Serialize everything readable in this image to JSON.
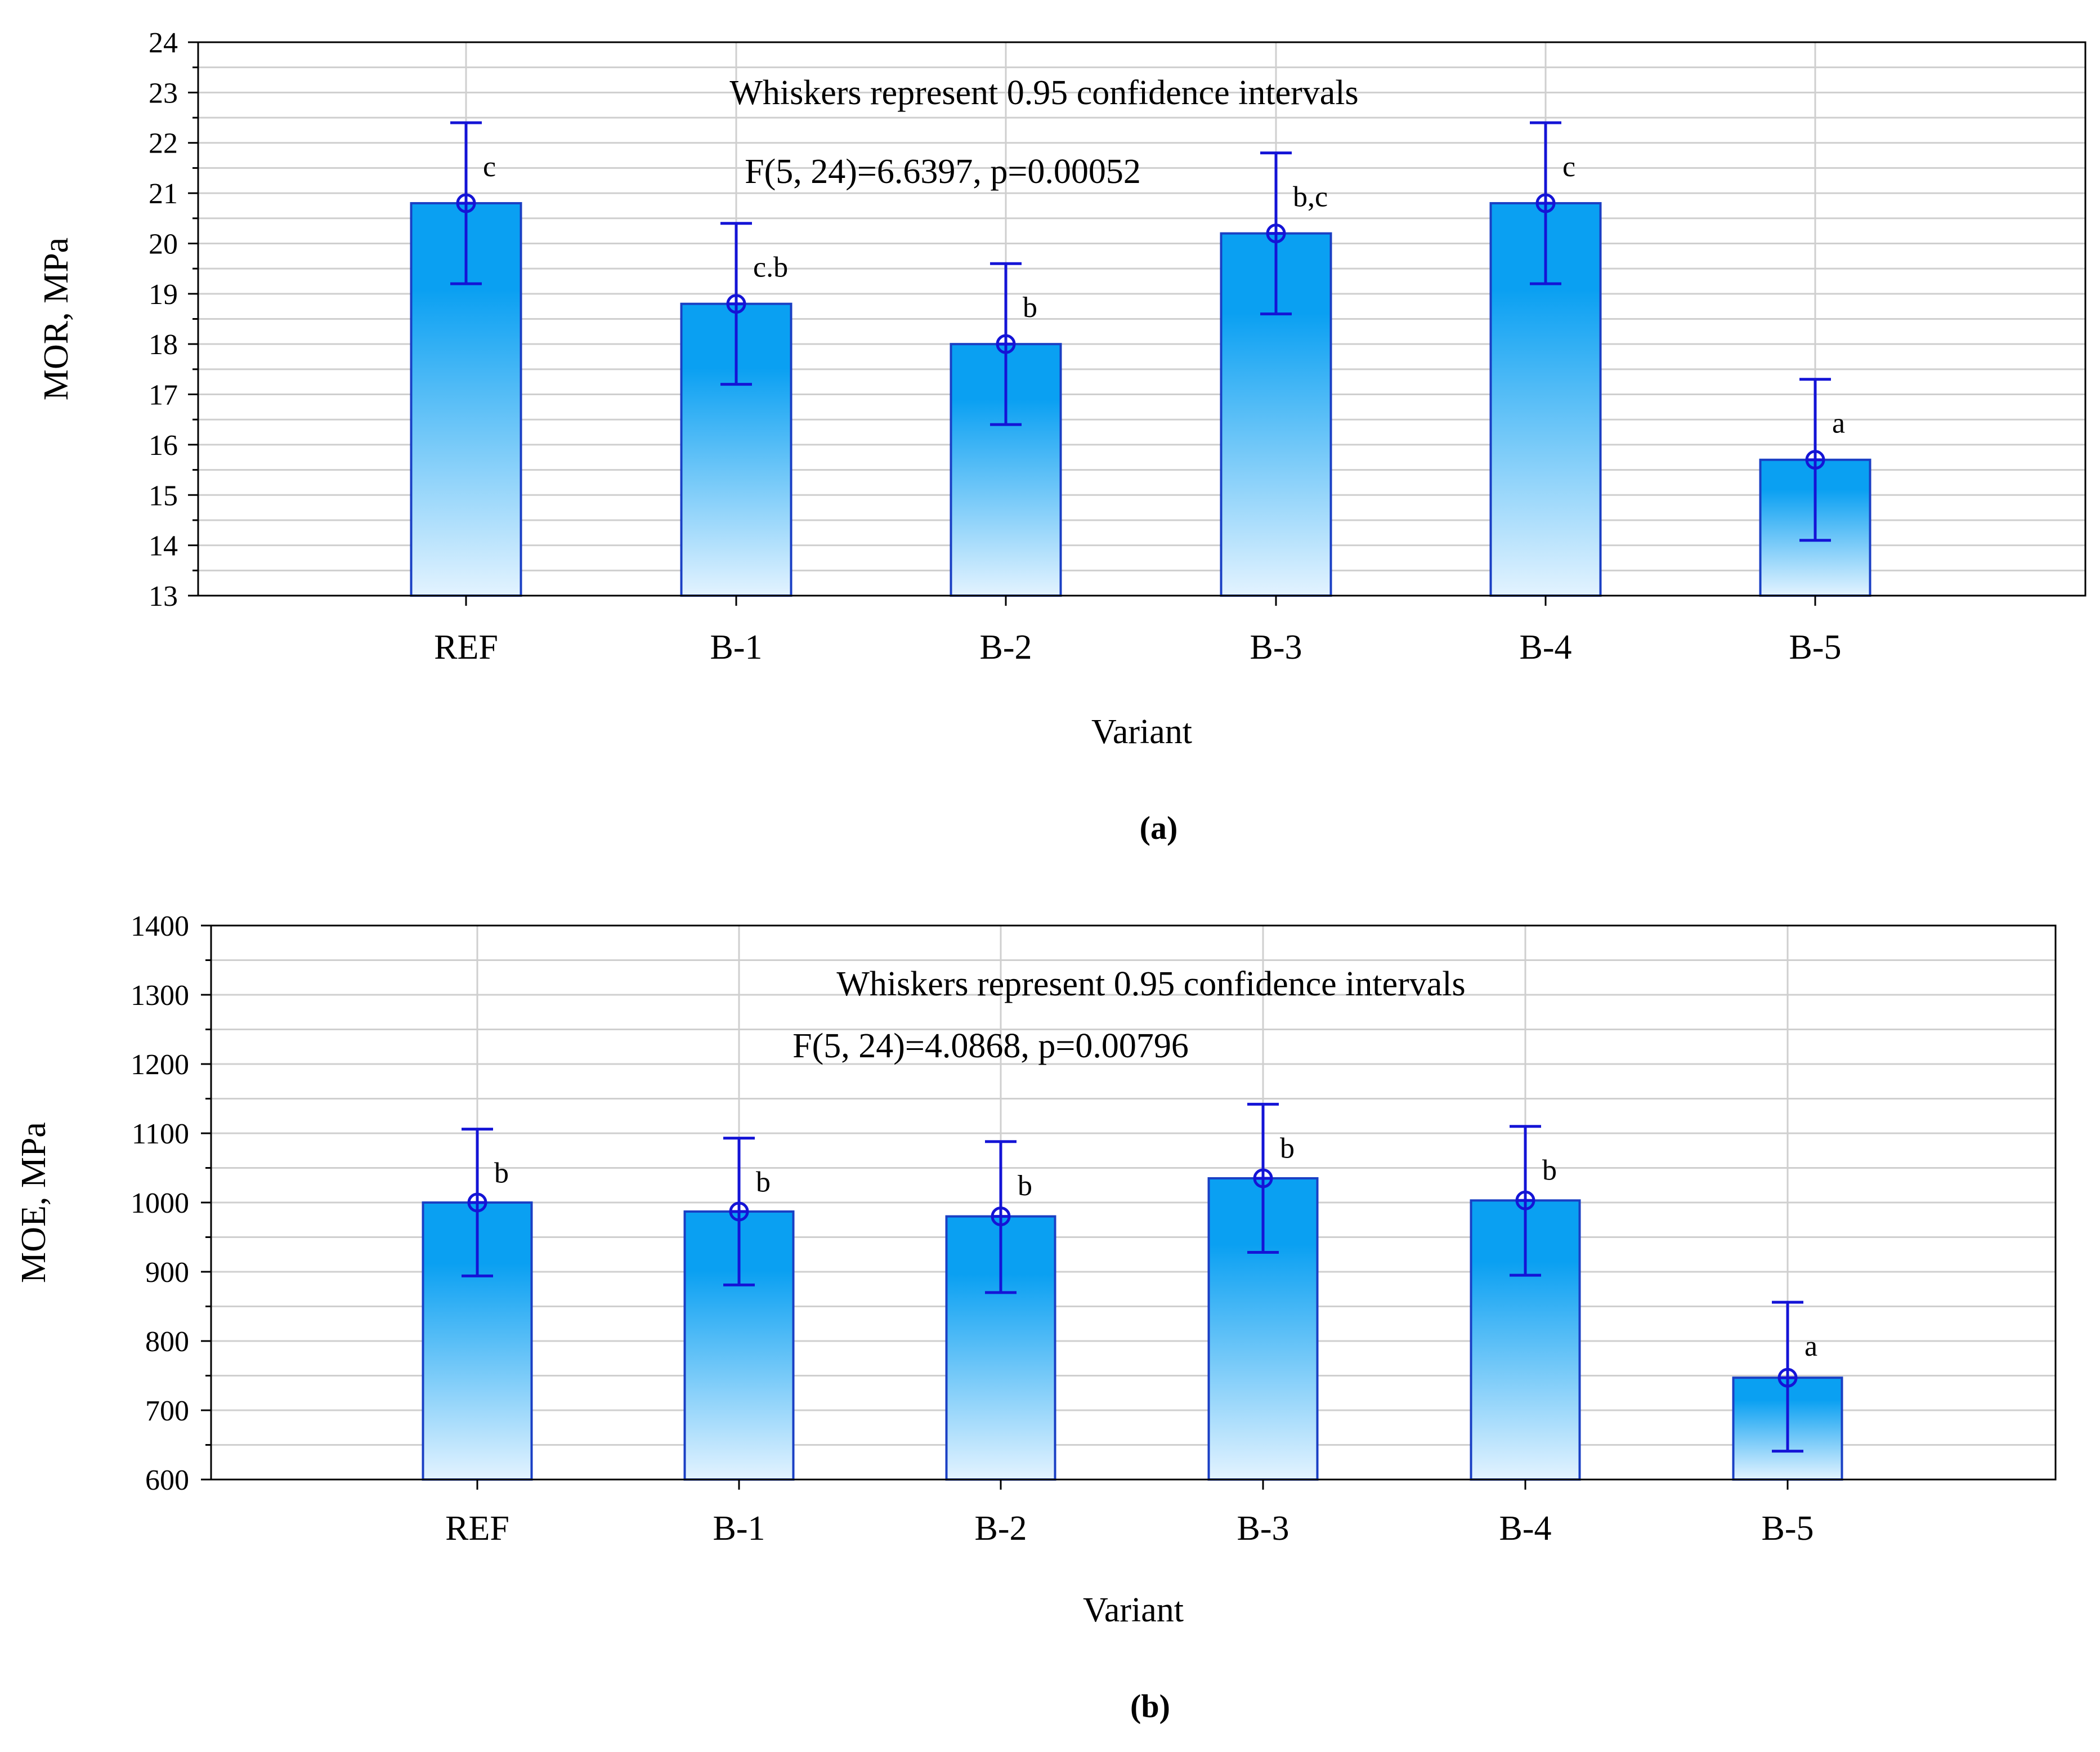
{
  "colors": {
    "bar_top": "#0aa0f2",
    "bar_bottom": "#e3f3ff",
    "bar_edge": "#1a3fc4",
    "whisker": "#1414d6",
    "grid": "#cfcfcf"
  },
  "chart_data": [
    {
      "type": "bar",
      "id": "a",
      "caption": "(a)",
      "categories": [
        "REF",
        "B-1",
        "B-2",
        "B-3",
        "B-4",
        "B-5"
      ],
      "values": [
        20.8,
        18.8,
        18.0,
        20.2,
        20.8,
        15.7
      ],
      "ci_low": [
        19.2,
        17.2,
        16.4,
        18.6,
        19.2,
        14.1
      ],
      "ci_high": [
        22.4,
        20.4,
        19.6,
        21.8,
        22.4,
        17.3
      ],
      "letters": [
        "c",
        "c.b",
        "b",
        "b,c",
        "c",
        "a"
      ],
      "annotation_1": "Whiskers represent 0.95 confidence intervals",
      "annotation_2": "F(5, 24)=6.6397, p=0.00052",
      "xlabel": "Variant",
      "ylabel": "MOR, MPa",
      "ylim": [
        13,
        24
      ],
      "yticks": [
        13,
        14,
        15,
        16,
        17,
        18,
        19,
        20,
        21,
        22,
        23,
        24
      ],
      "grid": true
    },
    {
      "type": "bar",
      "id": "b",
      "caption": "(b)",
      "categories": [
        "REF",
        "B-1",
        "B-2",
        "B-3",
        "B-4",
        "B-5"
      ],
      "values": [
        1000,
        987,
        980,
        1035,
        1003,
        747
      ],
      "ci_low": [
        894,
        881,
        870,
        928,
        895,
        641
      ],
      "ci_high": [
        1106,
        1093,
        1088,
        1142,
        1110,
        856
      ],
      "letters": [
        "b",
        "b",
        "b",
        "b",
        "b",
        "a"
      ],
      "annotation_1": "Whiskers represent 0.95 confidence intervals",
      "annotation_2": "F(5, 24)=4.0868, p=0.00796",
      "xlabel": "Variant",
      "ylabel": "MOE, MPa",
      "ylim": [
        600,
        1400
      ],
      "yticks": [
        600,
        700,
        800,
        900,
        1000,
        1100,
        1200,
        1300,
        1400
      ],
      "grid": true
    }
  ]
}
